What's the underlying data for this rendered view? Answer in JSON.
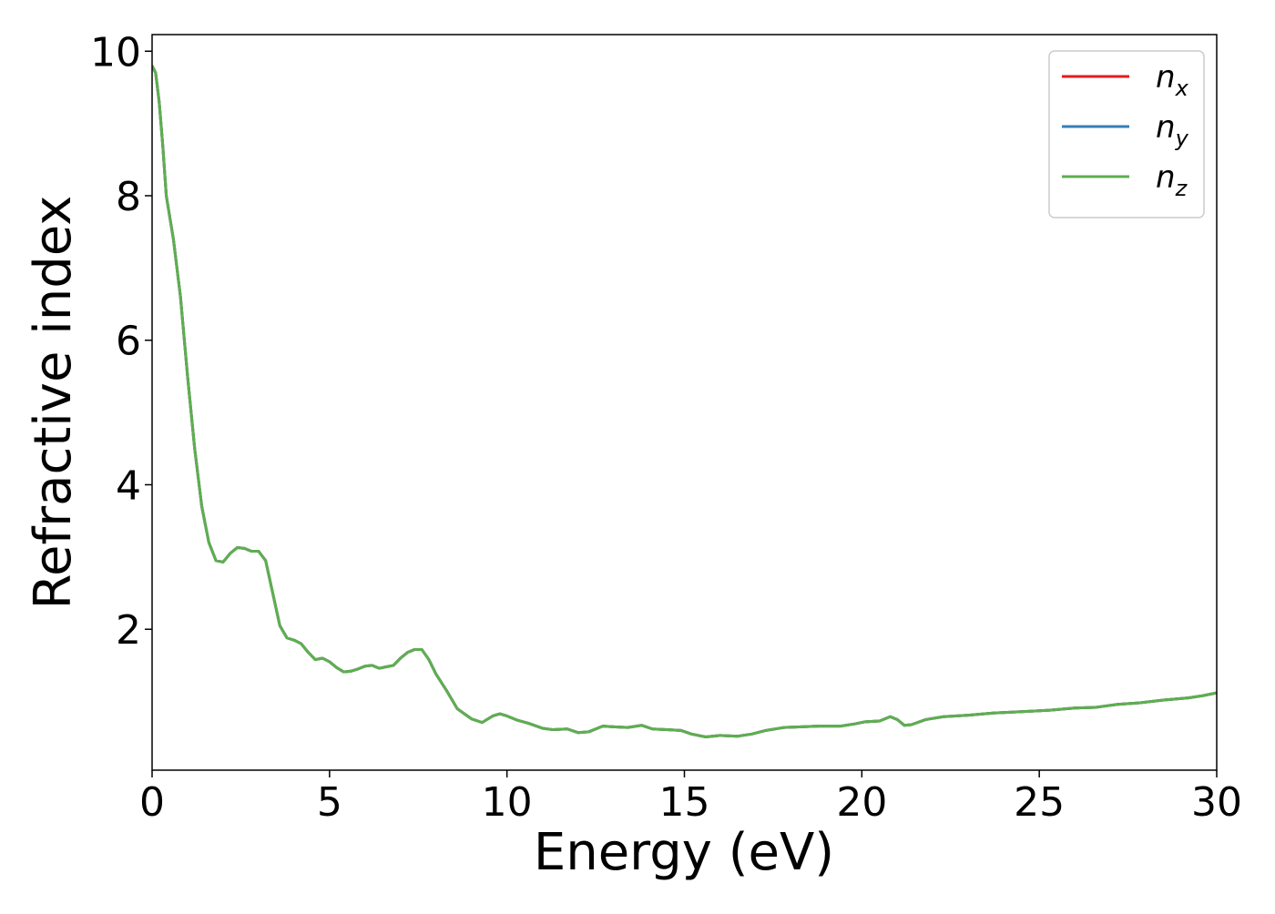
{
  "chart_data": {
    "type": "line",
    "xlabel": "Energy (eV)",
    "ylabel": "Refractive index",
    "x": [
      0,
      0.1,
      0.2,
      0.3,
      0.4,
      0.6,
      0.8,
      1.0,
      1.2,
      1.4,
      1.6,
      1.8,
      2.0,
      2.2,
      2.4,
      2.6,
      2.8,
      3.0,
      3.2,
      3.4,
      3.6,
      3.8,
      4.0,
      4.2,
      4.4,
      4.6,
      4.8,
      5.0,
      5.2,
      5.4,
      5.6,
      5.8,
      6.0,
      6.2,
      6.4,
      6.6,
      6.8,
      7.0,
      7.2,
      7.4,
      7.6,
      7.8,
      8.0,
      8.3,
      8.6,
      9.0,
      9.3,
      9.6,
      9.8,
      10.0,
      10.3,
      10.6,
      11.0,
      11.3,
      11.7,
      12.0,
      12.3,
      12.7,
      13.0,
      13.4,
      13.8,
      14.1,
      14.5,
      14.9,
      15.2,
      15.6,
      16.0,
      16.5,
      16.9,
      17.3,
      17.8,
      18.3,
      18.8,
      19.4,
      19.8,
      20.1,
      20.5,
      20.8,
      21.0,
      21.2,
      21.4,
      21.8,
      22.3,
      23,
      23.7,
      24.5,
      25.3,
      26,
      26.6,
      27.2,
      27.8,
      28.5,
      29.2,
      29.6,
      30
    ],
    "series": [
      {
        "name": "n_x",
        "color": "#e41a1c",
        "values": [
          9.8,
          9.7,
          9.3,
          8.7,
          8.0,
          7.4,
          6.6,
          5.5,
          4.5,
          3.7,
          3.2,
          2.95,
          2.93,
          3.05,
          3.13,
          3.12,
          3.08,
          3.08,
          2.95,
          2.5,
          2.05,
          1.88,
          1.85,
          1.8,
          1.68,
          1.58,
          1.6,
          1.55,
          1.47,
          1.41,
          1.42,
          1.45,
          1.49,
          1.5,
          1.46,
          1.48,
          1.5,
          1.6,
          1.68,
          1.72,
          1.72,
          1.58,
          1.38,
          1.15,
          0.9,
          0.76,
          0.71,
          0.8,
          0.83,
          0.8,
          0.74,
          0.7,
          0.63,
          0.61,
          0.62,
          0.57,
          0.58,
          0.66,
          0.65,
          0.64,
          0.67,
          0.62,
          0.61,
          0.6,
          0.55,
          0.51,
          0.53,
          0.52,
          0.55,
          0.6,
          0.64,
          0.65,
          0.66,
          0.66,
          0.69,
          0.72,
          0.73,
          0.79,
          0.75,
          0.67,
          0.68,
          0.75,
          0.79,
          0.81,
          0.84,
          0.86,
          0.88,
          0.91,
          0.92,
          0.96,
          0.98,
          1.02,
          1.05,
          1.08,
          1.12
        ]
      },
      {
        "name": "n_y",
        "color": "#377eb8",
        "values": [
          9.8,
          9.7,
          9.3,
          8.7,
          8.0,
          7.4,
          6.6,
          5.5,
          4.5,
          3.7,
          3.2,
          2.95,
          2.93,
          3.05,
          3.13,
          3.12,
          3.08,
          3.08,
          2.95,
          2.5,
          2.05,
          1.88,
          1.85,
          1.8,
          1.68,
          1.58,
          1.6,
          1.55,
          1.47,
          1.41,
          1.42,
          1.45,
          1.49,
          1.5,
          1.46,
          1.48,
          1.5,
          1.6,
          1.68,
          1.72,
          1.72,
          1.58,
          1.38,
          1.15,
          0.9,
          0.76,
          0.71,
          0.8,
          0.83,
          0.8,
          0.74,
          0.7,
          0.63,
          0.61,
          0.62,
          0.57,
          0.58,
          0.66,
          0.65,
          0.64,
          0.67,
          0.62,
          0.61,
          0.6,
          0.55,
          0.51,
          0.53,
          0.52,
          0.55,
          0.6,
          0.64,
          0.65,
          0.66,
          0.66,
          0.69,
          0.72,
          0.73,
          0.79,
          0.75,
          0.67,
          0.68,
          0.75,
          0.79,
          0.81,
          0.84,
          0.86,
          0.88,
          0.91,
          0.92,
          0.96,
          0.98,
          1.02,
          1.05,
          1.08,
          1.12
        ]
      },
      {
        "name": "n_z",
        "color": "#5daf4f",
        "values": [
          9.8,
          9.7,
          9.3,
          8.7,
          8.0,
          7.4,
          6.6,
          5.5,
          4.5,
          3.7,
          3.2,
          2.95,
          2.93,
          3.05,
          3.13,
          3.12,
          3.08,
          3.08,
          2.95,
          2.5,
          2.05,
          1.88,
          1.85,
          1.8,
          1.68,
          1.58,
          1.6,
          1.55,
          1.47,
          1.41,
          1.42,
          1.45,
          1.49,
          1.5,
          1.46,
          1.48,
          1.5,
          1.6,
          1.68,
          1.72,
          1.72,
          1.58,
          1.38,
          1.15,
          0.9,
          0.76,
          0.71,
          0.8,
          0.83,
          0.8,
          0.74,
          0.7,
          0.63,
          0.61,
          0.62,
          0.57,
          0.58,
          0.66,
          0.65,
          0.64,
          0.67,
          0.62,
          0.61,
          0.6,
          0.55,
          0.51,
          0.53,
          0.52,
          0.55,
          0.6,
          0.64,
          0.65,
          0.66,
          0.66,
          0.69,
          0.72,
          0.73,
          0.79,
          0.75,
          0.67,
          0.68,
          0.75,
          0.79,
          0.81,
          0.84,
          0.86,
          0.88,
          0.91,
          0.92,
          0.96,
          0.98,
          1.02,
          1.05,
          1.08,
          1.12
        ]
      }
    ],
    "xlim": [
      0,
      30
    ],
    "xticks": [
      0,
      5,
      10,
      15,
      20,
      25,
      30
    ],
    "ylim": [
      0.05,
      10.23
    ],
    "yticks": [
      2,
      4,
      6,
      8,
      10
    ],
    "grid": false,
    "legend": "upper right"
  }
}
